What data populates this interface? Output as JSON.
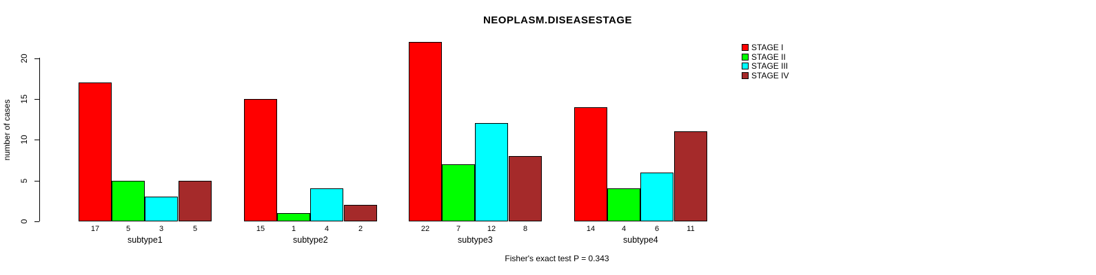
{
  "chart_data": {
    "type": "bar",
    "title": "NEOPLASM.DISEASESTAGE",
    "xlabel": "",
    "ylabel": "number of cases",
    "categories": [
      "subtype1",
      "subtype2",
      "subtype3",
      "subtype4"
    ],
    "series": [
      {
        "name": "STAGE I",
        "color": "#FF0000",
        "values": [
          17,
          15,
          22,
          14
        ]
      },
      {
        "name": "STAGE II",
        "color": "#00FF00",
        "values": [
          5,
          1,
          7,
          4
        ]
      },
      {
        "name": "STAGE III",
        "color": "#00FFFF",
        "values": [
          3,
          4,
          12,
          6
        ]
      },
      {
        "name": "STAGE IV",
        "color": "#A52A2A",
        "values": [
          5,
          2,
          8,
          11
        ]
      }
    ],
    "value_labels_shown": true,
    "yticks": [
      0,
      5,
      10,
      15,
      20
    ],
    "ylim": [
      0,
      22.5
    ],
    "grid": false,
    "legend_position": "top-right",
    "annotation": "Fisher's exact test P = 0.343",
    "background_color": "#FFFFFF",
    "axis_color": "#000000"
  }
}
